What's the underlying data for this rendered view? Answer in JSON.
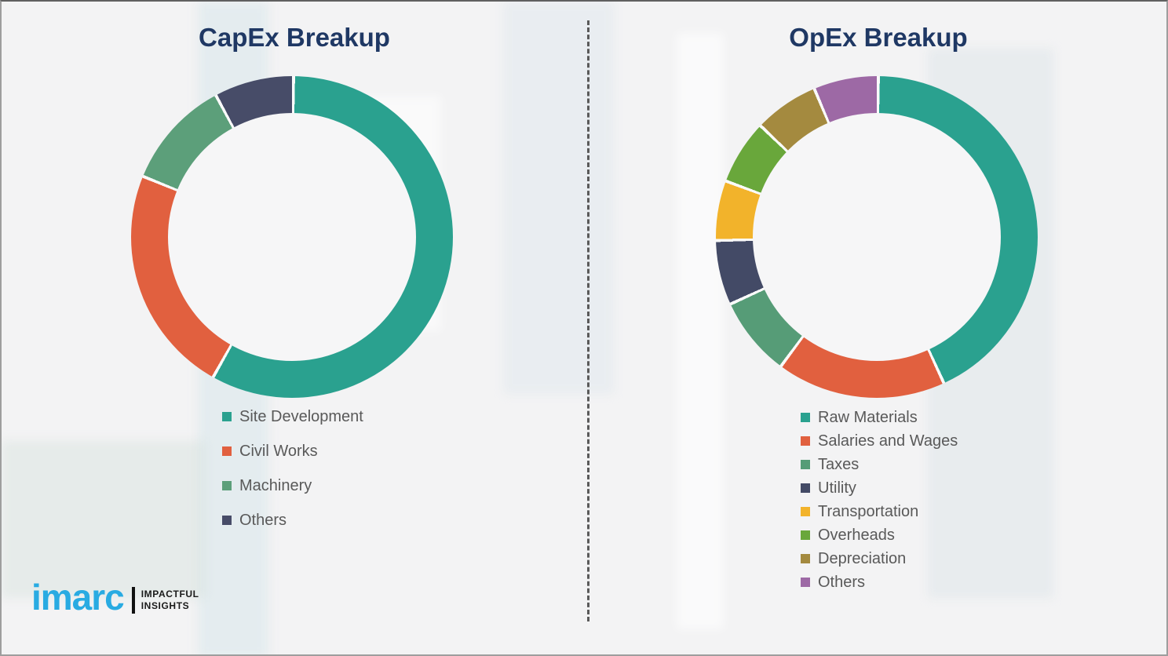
{
  "theme": {
    "background": "#f3f3f4",
    "border_color": "#9e9e9e",
    "title_color": "#1f3864",
    "legend_text_color": "#595959",
    "divider_color": "#5a5a5a",
    "segment_gap_color": "#fafafa"
  },
  "branding": {
    "logo_text": "imarc",
    "tagline_line1": "IMPACTFUL",
    "tagline_line2": "INSIGHTS",
    "logo_color": "#29abe2"
  },
  "chart_data": [
    {
      "type": "pie",
      "variant": "donut",
      "title": "CapEx Breakup",
      "legend_position": "bottom-left",
      "start_angle_deg": 0,
      "direction": "clockwise",
      "segments": [
        {
          "label": "Site Development",
          "value": 58,
          "color": "#2aa18f"
        },
        {
          "label": "Civil Works",
          "value": 23,
          "color": "#e1603f"
        },
        {
          "label": "Machinery",
          "value": 11,
          "color": "#5c9f7a"
        },
        {
          "label": "Others",
          "value": 8,
          "color": "#474c68"
        }
      ]
    },
    {
      "type": "pie",
      "variant": "donut",
      "title": "OpEx Breakup",
      "legend_position": "bottom-left",
      "start_angle_deg": 0,
      "direction": "clockwise",
      "segments": [
        {
          "label": "Raw Materials",
          "value": 43.0,
          "color": "#2aa18f"
        },
        {
          "label": "Salaries and Wages",
          "value": 17.0,
          "color": "#e1603f"
        },
        {
          "label": "Taxes",
          "value": 8.0,
          "color": "#569c77"
        },
        {
          "label": "Utility",
          "value": 6.5,
          "color": "#434a66"
        },
        {
          "label": "Transportation",
          "value": 6.0,
          "color": "#f2b32b"
        },
        {
          "label": "Overheads",
          "value": 6.5,
          "color": "#69a73b"
        },
        {
          "label": "Depreciation",
          "value": 6.5,
          "color": "#a48a3f"
        },
        {
          "label": "Others",
          "value": 6.5,
          "color": "#9d69a5"
        }
      ]
    }
  ]
}
